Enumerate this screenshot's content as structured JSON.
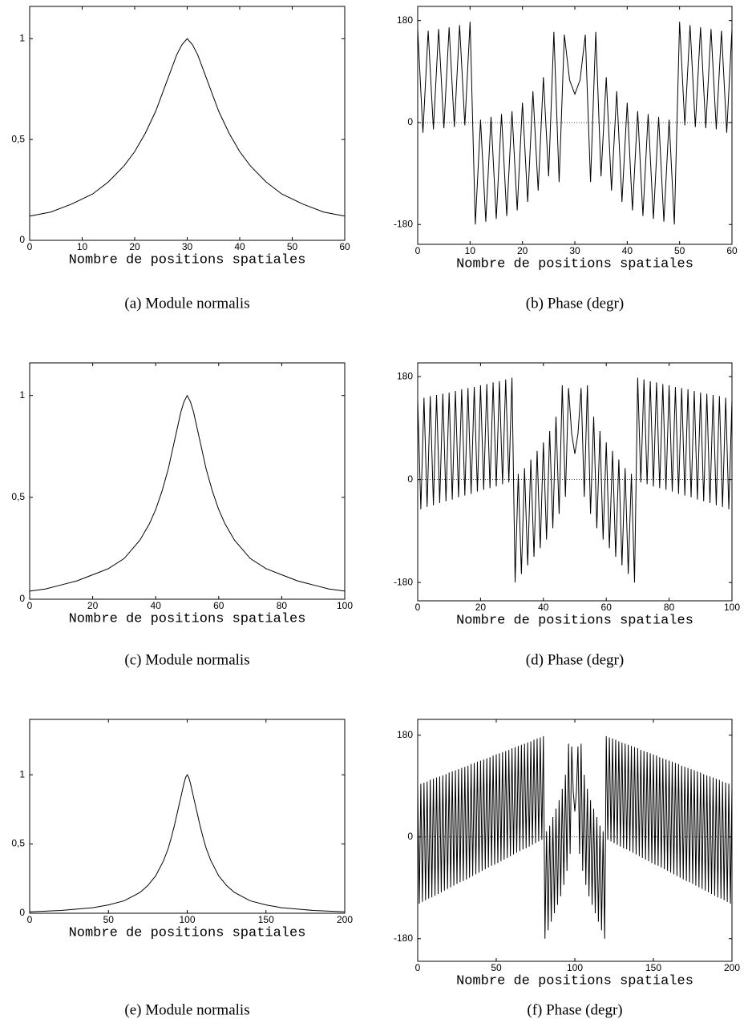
{
  "chart_data": [
    {
      "type": "line",
      "caption": "(a) Module normalis",
      "xlabel": "Nombre de positions spatiales",
      "color": "#000000",
      "x": [
        0,
        4,
        8,
        12,
        15,
        18,
        20,
        22,
        24,
        25,
        26,
        27,
        28,
        29,
        30,
        31,
        32,
        33,
        34,
        35,
        36,
        38,
        40,
        42,
        45,
        48,
        52,
        56,
        60
      ],
      "values": [
        0.12,
        0.14,
        0.18,
        0.23,
        0.29,
        0.37,
        0.44,
        0.53,
        0.64,
        0.71,
        0.78,
        0.85,
        0.92,
        0.97,
        1,
        0.97,
        0.92,
        0.85,
        0.78,
        0.71,
        0.64,
        0.53,
        0.44,
        0.37,
        0.29,
        0.23,
        0.18,
        0.14,
        0.12
      ],
      "xlim": [
        0,
        60
      ],
      "xticks": [
        0,
        10,
        20,
        30,
        40,
        50,
        60
      ],
      "ylim": [
        0,
        1.16
      ],
      "yticks": [
        0,
        {
          "value": 0.5,
          "label": "0,5"
        },
        1
      ]
    },
    {
      "type": "line",
      "caption": "(b) Phase (degr)",
      "xlabel": "Nombre de positions spatiales",
      "color": "#000000",
      "zero_line": true,
      "x": [
        0,
        1,
        2,
        3,
        4,
        5,
        6,
        7,
        8,
        9,
        10,
        11,
        12,
        13,
        14,
        15,
        16,
        17,
        18,
        19,
        20,
        21,
        22,
        23,
        24,
        25,
        26,
        27,
        28,
        29,
        30,
        31,
        32,
        33,
        34,
        35,
        36,
        37,
        38,
        39,
        40,
        41,
        42,
        43,
        44,
        45,
        46,
        47,
        48,
        49,
        50,
        51,
        52,
        53,
        54,
        55,
        56,
        57,
        58,
        59,
        60
      ],
      "values": [
        165,
        -18,
        162,
        -12,
        165,
        -10,
        168,
        -8,
        172,
        -5,
        178,
        -180,
        5,
        -175,
        10,
        -170,
        15,
        -165,
        20,
        -155,
        35,
        -140,
        55,
        -120,
        80,
        -95,
        160,
        -105,
        155,
        75,
        50,
        75,
        155,
        -105,
        160,
        -95,
        80,
        -120,
        55,
        -140,
        35,
        -155,
        20,
        -165,
        15,
        -170,
        10,
        -175,
        5,
        -180,
        178,
        -5,
        172,
        -8,
        168,
        -10,
        165,
        -12,
        162,
        -18,
        165
      ],
      "xlim": [
        0,
        60
      ],
      "xticks": [
        0,
        10,
        20,
        30,
        40,
        50,
        60
      ],
      "ylim": [
        -215,
        205
      ],
      "yticks": [
        -180,
        0,
        180
      ]
    },
    {
      "type": "line",
      "caption": "(c) Module normalis",
      "xlabel": "Nombre de positions spatiales",
      "color": "#000000",
      "x": [
        0,
        5,
        10,
        15,
        20,
        25,
        30,
        35,
        38,
        40,
        42,
        44,
        45,
        46,
        47,
        48,
        49,
        50,
        51,
        52,
        53,
        54,
        55,
        56,
        58,
        60,
        62,
        65,
        70,
        75,
        80,
        85,
        90,
        95,
        100
      ],
      "values": [
        0.04,
        0.05,
        0.07,
        0.09,
        0.12,
        0.15,
        0.2,
        0.29,
        0.37,
        0.44,
        0.53,
        0.64,
        0.71,
        0.78,
        0.85,
        0.92,
        0.97,
        1,
        0.97,
        0.92,
        0.85,
        0.78,
        0.71,
        0.64,
        0.53,
        0.44,
        0.37,
        0.29,
        0.2,
        0.15,
        0.12,
        0.09,
        0.07,
        0.05,
        0.04
      ],
      "xlim": [
        0,
        100
      ],
      "xticks": [
        0,
        20,
        40,
        60,
        80,
        100
      ],
      "ylim": [
        0,
        1.16
      ],
      "yticks": [
        0,
        {
          "value": 0.5,
          "label": "0,5"
        },
        1
      ]
    },
    {
      "type": "line",
      "caption": "(d) Phase (degr)",
      "xlabel": "Nombre de positions spatiales",
      "color": "#000000",
      "zero_line": true,
      "x": [
        0,
        1,
        2,
        3,
        4,
        5,
        6,
        7,
        8,
        9,
        10,
        11,
        12,
        13,
        14,
        15,
        16,
        17,
        18,
        19,
        20,
        21,
        22,
        23,
        24,
        25,
        26,
        27,
        28,
        29,
        30,
        31,
        32,
        33,
        34,
        35,
        36,
        37,
        38,
        39,
        40,
        41,
        42,
        43,
        44,
        45,
        46,
        47,
        48,
        49,
        50,
        51,
        52,
        53,
        54,
        55,
        56,
        57,
        58,
        59,
        60,
        61,
        62,
        63,
        64,
        65,
        66,
        67,
        68,
        69,
        70,
        71,
        72,
        73,
        74,
        75,
        76,
        77,
        78,
        79,
        80,
        81,
        82,
        83,
        84,
        85,
        86,
        87,
        88,
        89,
        90,
        91,
        92,
        93,
        94,
        95,
        96,
        97,
        98,
        99,
        100
      ],
      "values": [
        140,
        -52,
        143,
        -48,
        146,
        -45,
        148,
        -41,
        150,
        -38,
        152,
        -35,
        155,
        -31,
        158,
        -28,
        160,
        -25,
        162,
        -21,
        165,
        -18,
        167,
        -15,
        170,
        -12,
        172,
        -8,
        175,
        -5,
        178,
        -180,
        10,
        -165,
        20,
        -150,
        35,
        -135,
        50,
        -120,
        65,
        -105,
        85,
        -85,
        110,
        -60,
        165,
        -30,
        160,
        80,
        45,
        80,
        160,
        -30,
        165,
        -60,
        110,
        -85,
        85,
        -105,
        65,
        -120,
        50,
        -135,
        35,
        -150,
        20,
        -165,
        10,
        -180,
        178,
        -5,
        175,
        -8,
        172,
        -12,
        170,
        -15,
        167,
        -18,
        165,
        -21,
        162,
        -25,
        160,
        -28,
        158,
        -31,
        155,
        -35,
        152,
        -38,
        150,
        -41,
        148,
        -45,
        146,
        -48,
        143,
        -52,
        140
      ],
      "xlim": [
        0,
        100
      ],
      "xticks": [
        0,
        20,
        40,
        60,
        80,
        100
      ],
      "ylim": [
        -212,
        204
      ],
      "yticks": [
        -180,
        0,
        180
      ]
    },
    {
      "type": "line",
      "caption": "(e) Module normalis",
      "xlabel": "Nombre de positions spatiales",
      "color": "#000000",
      "x": [
        0,
        20,
        40,
        50,
        60,
        70,
        75,
        80,
        85,
        88,
        90,
        92,
        94,
        96,
        97,
        98,
        99,
        100,
        101,
        102,
        103,
        104,
        106,
        108,
        110,
        112,
        115,
        120,
        125,
        130,
        140,
        150,
        160,
        180,
        200
      ],
      "values": [
        0.01,
        0.02,
        0.04,
        0.06,
        0.09,
        0.15,
        0.2,
        0.27,
        0.38,
        0.47,
        0.55,
        0.64,
        0.74,
        0.84,
        0.89,
        0.94,
        0.98,
        1,
        0.98,
        0.94,
        0.89,
        0.84,
        0.74,
        0.64,
        0.55,
        0.47,
        0.38,
        0.27,
        0.2,
        0.15,
        0.09,
        0.06,
        0.04,
        0.02,
        0.01
      ],
      "xlim": [
        0,
        200
      ],
      "xticks": [
        0,
        50,
        100,
        150,
        200
      ],
      "ylim": [
        0,
        1.4
      ],
      "yticks": [
        0,
        {
          "value": 0.5,
          "label": "0,5"
        },
        1
      ]
    },
    {
      "type": "line",
      "caption": "(f) Phase (degr)",
      "xlabel": "Nombre de positions spatiales",
      "color": "#000000",
      "zero_line": true,
      "x": [
        0,
        1,
        2,
        3,
        4,
        5,
        6,
        7,
        8,
        9,
        10,
        11,
        12,
        13,
        14,
        15,
        16,
        17,
        18,
        19,
        20,
        21,
        22,
        23,
        24,
        25,
        26,
        27,
        28,
        29,
        30,
        31,
        32,
        33,
        34,
        35,
        36,
        37,
        38,
        39,
        40,
        41,
        42,
        43,
        44,
        45,
        46,
        47,
        48,
        49,
        50,
        51,
        52,
        53,
        54,
        55,
        56,
        57,
        58,
        59,
        60,
        61,
        62,
        63,
        64,
        65,
        66,
        67,
        68,
        69,
        70,
        71,
        72,
        73,
        74,
        75,
        76,
        77,
        78,
        79,
        80,
        81,
        82,
        83,
        84,
        85,
        86,
        87,
        88,
        89,
        90,
        91,
        92,
        93,
        94,
        95,
        96,
        97,
        98,
        99,
        100,
        101,
        102,
        103,
        104,
        105,
        106,
        107,
        108,
        109,
        110,
        111,
        112,
        113,
        114,
        115,
        116,
        117,
        118,
        119,
        120,
        121,
        122,
        123,
        124,
        125,
        126,
        127,
        128,
        129,
        130,
        131,
        132,
        133,
        134,
        135,
        136,
        137,
        138,
        139,
        140,
        141,
        142,
        143,
        144,
        145,
        146,
        147,
        148,
        149,
        150,
        151,
        152,
        153,
        154,
        155,
        156,
        157,
        158,
        159,
        160,
        161,
        162,
        163,
        164,
        165,
        166,
        167,
        168,
        169,
        170,
        171,
        172,
        173,
        174,
        175,
        176,
        177,
        178,
        179,
        180,
        181,
        182,
        183,
        184,
        185,
        186,
        187,
        188,
        189,
        190,
        191,
        192,
        193,
        194,
        195,
        196,
        197,
        198,
        199,
        200
      ],
      "values": [
        92,
        -118,
        94,
        -115,
        96,
        -112,
        98,
        -109,
        101,
        -107,
        103,
        -104,
        105,
        -101,
        107,
        -98,
        109,
        -95,
        111,
        -92,
        114,
        -89,
        116,
        -86,
        118,
        -83,
        120,
        -80,
        122,
        -78,
        124,
        -75,
        126,
        -72,
        129,
        -69,
        131,
        -66,
        133,
        -63,
        135,
        -60,
        137,
        -57,
        139,
        -54,
        141,
        -51,
        144,
        -49,
        146,
        -46,
        148,
        -43,
        150,
        -40,
        152,
        -37,
        154,
        -34,
        157,
        -31,
        159,
        -28,
        161,
        -25,
        163,
        -22,
        165,
        -20,
        167,
        -17,
        169,
        -14,
        172,
        -11,
        174,
        -8,
        176,
        -5,
        178,
        -180,
        10,
        -165,
        20,
        -150,
        35,
        -135,
        50,
        -120,
        65,
        -105,
        85,
        -85,
        110,
        -60,
        165,
        -30,
        160,
        80,
        45,
        80,
        160,
        -30,
        165,
        -60,
        110,
        -85,
        85,
        -105,
        65,
        -120,
        50,
        -135,
        35,
        -150,
        20,
        -165,
        10,
        -180,
        178,
        -5,
        176,
        -8,
        174,
        -11,
        172,
        -14,
        169,
        -17,
        167,
        -20,
        165,
        -22,
        163,
        -25,
        161,
        -28,
        159,
        -31,
        157,
        -34,
        154,
        -37,
        152,
        -40,
        150,
        -43,
        148,
        -46,
        146,
        -49,
        144,
        -51,
        141,
        -54,
        139,
        -57,
        137,
        -60,
        135,
        -63,
        133,
        -66,
        131,
        -69,
        129,
        -72,
        126,
        -75,
        124,
        -78,
        122,
        -80,
        120,
        -83,
        118,
        -86,
        116,
        -89,
        114,
        -92,
        111,
        -95,
        109,
        -98,
        107,
        -101,
        105,
        -104,
        103,
        -107,
        101,
        -109,
        98,
        -112,
        96,
        -115,
        94,
        -118,
        92
      ],
      "xlim": [
        0,
        200
      ],
      "xticks": [
        0,
        50,
        100,
        150,
        200
      ],
      "ylim": [
        -220,
        208
      ],
      "yticks": [
        -180,
        0,
        180
      ]
    }
  ]
}
